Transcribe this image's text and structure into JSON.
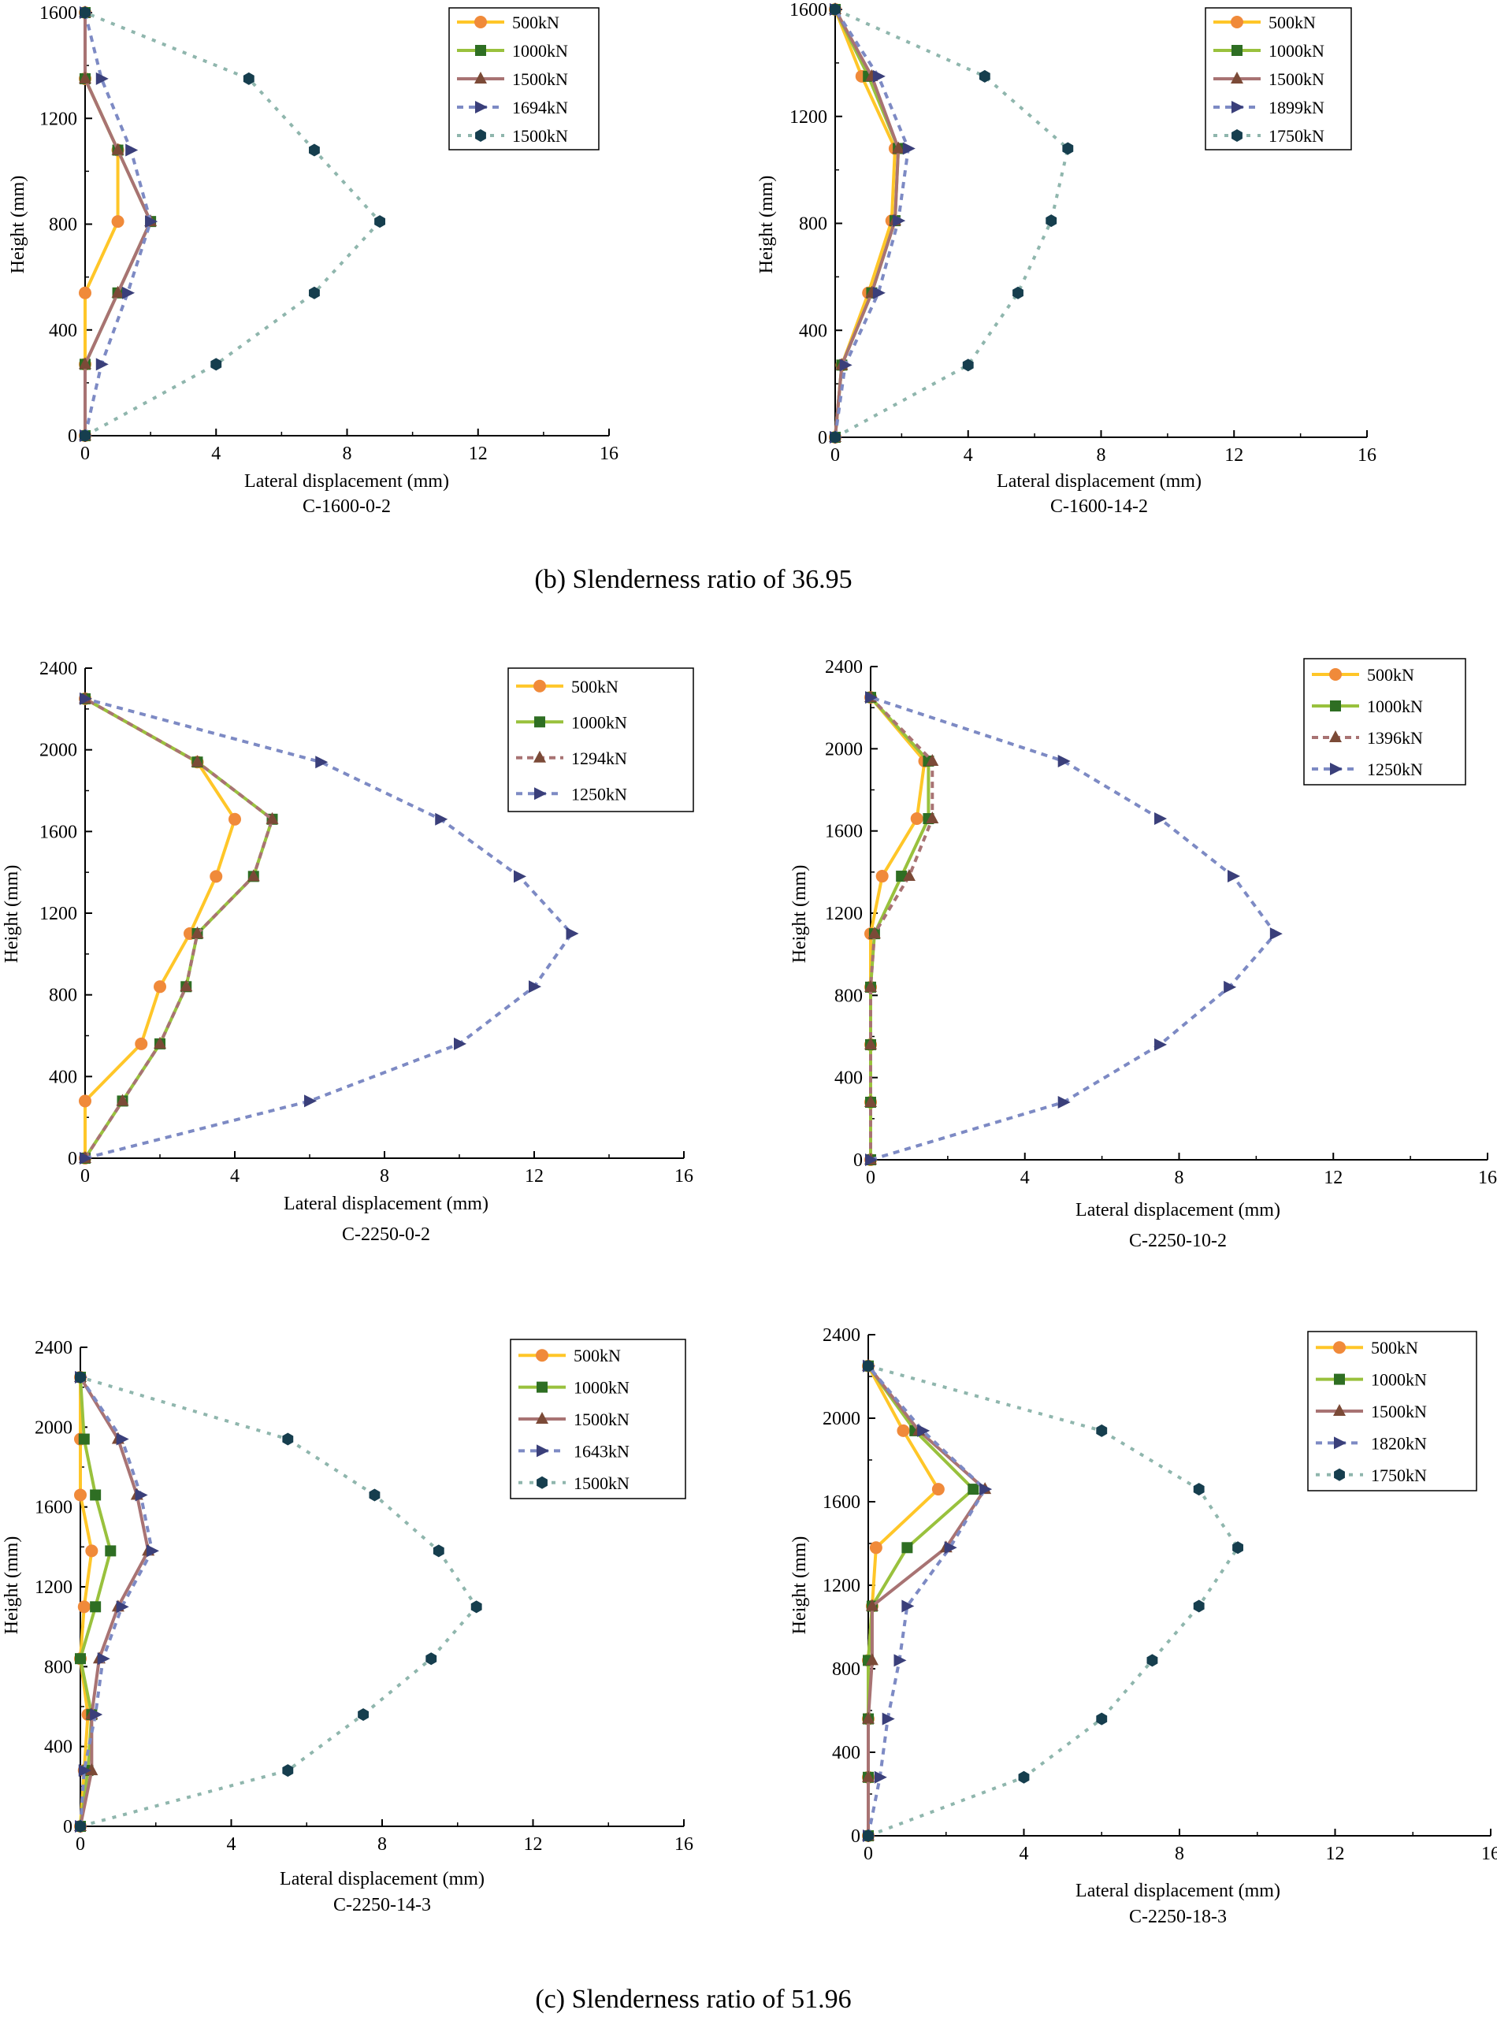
{
  "colors": {
    "c500": "#FFC628",
    "c1000": "#99C13D",
    "c1500": "#A87373",
    "cpeak": "#7D8AC4",
    "cpost": "#8FB6AD",
    "m500": "#F08A3A",
    "m1000": "#2E6E23",
    "m1500": "#7B4A37",
    "mpeak": "#3A3F7A",
    "mpost": "#163E4E"
  },
  "captions": {
    "b": "(b) Slenderness ratio of 36.95",
    "c": "(c) Slenderness ratio of 51.96"
  },
  "chart_data": [
    {
      "type": "line",
      "subtitle": "C-1600-0-2",
      "xlabel": "Lateral displacement (mm)",
      "ylabel": "Height (mm)",
      "xlim": [
        0,
        16
      ],
      "ylim": [
        0,
        1600
      ],
      "xticks": [
        0,
        4,
        8,
        12,
        16
      ],
      "yticks": [
        0,
        400,
        800,
        1200,
        1600
      ],
      "series": [
        {
          "name": "500kN",
          "style": "c500",
          "x": [
            0,
            0,
            0,
            1,
            1,
            0,
            0
          ],
          "y": [
            0,
            270,
            540,
            810,
            1080,
            1350,
            1600
          ]
        },
        {
          "name": "1000kN",
          "style": "c1000",
          "x": [
            0,
            0,
            1,
            2,
            1,
            0,
            0
          ],
          "y": [
            0,
            270,
            540,
            810,
            1080,
            1350,
            1600
          ]
        },
        {
          "name": "1500kN",
          "style": "c1500",
          "x": [
            0,
            0,
            1,
            2,
            1,
            0,
            0
          ],
          "y": [
            0,
            270,
            540,
            810,
            1080,
            1350,
            1600
          ]
        },
        {
          "name": "1694kN",
          "style": "cpeak",
          "x": [
            0,
            0.5,
            1.3,
            2,
            1.4,
            0.5,
            0
          ],
          "y": [
            0,
            270,
            540,
            810,
            1080,
            1350,
            1600
          ]
        },
        {
          "name": "1500kN",
          "style": "cpost",
          "x": [
            0,
            4,
            7,
            9,
            7,
            5,
            0
          ],
          "y": [
            0,
            270,
            540,
            810,
            1080,
            1350,
            1600
          ]
        }
      ]
    },
    {
      "type": "line",
      "subtitle": "C-1600-14-2",
      "xlabel": "Lateral displacement (mm)",
      "ylabel": "Height (mm)",
      "xlim": [
        0,
        16
      ],
      "ylim": [
        0,
        1600
      ],
      "xticks": [
        0,
        4,
        8,
        12,
        16
      ],
      "yticks": [
        0,
        400,
        800,
        1200,
        1600
      ],
      "series": [
        {
          "name": "500kN",
          "style": "c500",
          "x": [
            0,
            0.2,
            1,
            1.7,
            1.8,
            0.8,
            0
          ],
          "y": [
            0,
            270,
            540,
            810,
            1080,
            1350,
            1600
          ]
        },
        {
          "name": "1000kN",
          "style": "c1000",
          "x": [
            0,
            0.2,
            1.1,
            1.8,
            1.9,
            1,
            0
          ],
          "y": [
            0,
            270,
            540,
            810,
            1080,
            1350,
            1600
          ]
        },
        {
          "name": "1500kN",
          "style": "c1500",
          "x": [
            0,
            0.2,
            1.1,
            1.8,
            1.9,
            1.1,
            0
          ],
          "y": [
            0,
            270,
            540,
            810,
            1080,
            1350,
            1600
          ]
        },
        {
          "name": "1899kN",
          "style": "cpeak",
          "x": [
            0,
            0.3,
            1.3,
            1.9,
            2.2,
            1.3,
            0
          ],
          "y": [
            0,
            270,
            540,
            810,
            1080,
            1350,
            1600
          ]
        },
        {
          "name": "1750kN",
          "style": "cpost",
          "x": [
            0,
            4,
            5.5,
            6.5,
            7,
            4.5,
            0
          ],
          "y": [
            0,
            270,
            540,
            810,
            1080,
            1350,
            1600
          ]
        }
      ]
    },
    {
      "type": "line",
      "subtitle": "C-2250-0-2",
      "xlabel": "Lateral displacement (mm)",
      "ylabel": "Height (mm)",
      "xlim": [
        0,
        16
      ],
      "ylim": [
        0,
        2400
      ],
      "xticks": [
        0,
        4,
        8,
        12,
        16
      ],
      "yticks": [
        0,
        400,
        800,
        1200,
        1600,
        2000,
        2400
      ],
      "series": [
        {
          "name": "500kN",
          "style": "c500",
          "x": [
            0,
            0,
            1.5,
            2,
            2.8,
            3.5,
            4,
            3,
            0
          ],
          "y": [
            0,
            280,
            560,
            840,
            1100,
            1380,
            1660,
            1940,
            2250
          ]
        },
        {
          "name": "1000kN",
          "style": "c1000",
          "x": [
            0,
            1,
            2,
            2.7,
            3,
            4.5,
            5,
            3,
            0
          ],
          "y": [
            0,
            280,
            560,
            840,
            1100,
            1380,
            1660,
            1940,
            2250
          ]
        },
        {
          "name": "1294kN",
          "style": "c1500dash",
          "x": [
            0,
            1,
            2,
            2.7,
            3,
            4.5,
            5,
            3,
            0
          ],
          "y": [
            0,
            280,
            560,
            840,
            1100,
            1380,
            1660,
            1940,
            2250
          ]
        },
        {
          "name": "1250kN",
          "style": "cpeak",
          "x": [
            0,
            6,
            10,
            12,
            13,
            11.6,
            9.5,
            6.3,
            0
          ],
          "y": [
            0,
            280,
            560,
            840,
            1100,
            1380,
            1660,
            1940,
            2250
          ]
        }
      ]
    },
    {
      "type": "line",
      "subtitle": "C-2250-10-2",
      "xlabel": "Lateral displacement (mm)",
      "ylabel": "Height (mm)",
      "xlim": [
        0,
        16
      ],
      "ylim": [
        0,
        2400
      ],
      "xticks": [
        0,
        4,
        8,
        12,
        16
      ],
      "yticks": [
        0,
        400,
        800,
        1200,
        1600,
        2000,
        2400
      ],
      "series": [
        {
          "name": "500kN",
          "style": "c500",
          "x": [
            0,
            0,
            0,
            0,
            0,
            0.3,
            1.2,
            1.4,
            0
          ],
          "y": [
            0,
            280,
            560,
            840,
            1100,
            1380,
            1660,
            1940,
            2250
          ]
        },
        {
          "name": "1000kN",
          "style": "c1000",
          "x": [
            0,
            0,
            0,
            0,
            0.1,
            0.8,
            1.5,
            1.5,
            0
          ],
          "y": [
            0,
            280,
            560,
            840,
            1100,
            1380,
            1660,
            1940,
            2250
          ]
        },
        {
          "name": "1396kN",
          "style": "c1500dash",
          "x": [
            0,
            0,
            0,
            0,
            0.1,
            1,
            1.6,
            1.6,
            0
          ],
          "y": [
            0,
            280,
            560,
            840,
            1100,
            1380,
            1660,
            1940,
            2250
          ]
        },
        {
          "name": "1250kN",
          "style": "cpeak",
          "x": [
            0,
            5,
            7.5,
            9.3,
            10.5,
            9.4,
            7.5,
            5,
            0
          ],
          "y": [
            0,
            280,
            560,
            840,
            1100,
            1380,
            1660,
            1940,
            2250
          ]
        }
      ]
    },
    {
      "type": "line",
      "subtitle": "C-2250-14-3",
      "xlabel": "Lateral displacement (mm)",
      "ylabel": "Height (mm)",
      "xlim": [
        0,
        16
      ],
      "ylim": [
        0,
        2400
      ],
      "xticks": [
        0,
        4,
        8,
        12,
        16
      ],
      "yticks": [
        0,
        400,
        800,
        1200,
        1600,
        2000,
        2400
      ],
      "series": [
        {
          "name": "500kN",
          "style": "c500",
          "x": [
            0,
            0.1,
            0.2,
            0,
            0.1,
            0.3,
            0,
            0,
            0
          ],
          "y": [
            0,
            280,
            560,
            840,
            1100,
            1380,
            1660,
            1940,
            2250
          ]
        },
        {
          "name": "1000kN",
          "style": "c1000",
          "x": [
            0,
            0.2,
            0.3,
            0,
            0.4,
            0.8,
            0.4,
            0.1,
            0
          ],
          "y": [
            0,
            280,
            560,
            840,
            1100,
            1380,
            1660,
            1940,
            2250
          ]
        },
        {
          "name": "1500kN",
          "style": "c1500",
          "x": [
            0,
            0.3,
            0.3,
            0.5,
            1,
            1.8,
            1.5,
            1,
            0
          ],
          "y": [
            0,
            280,
            560,
            840,
            1100,
            1380,
            1660,
            1940,
            2250
          ]
        },
        {
          "name": "1643kN",
          "style": "cpeak",
          "x": [
            0,
            0.1,
            0.4,
            0.6,
            1.1,
            1.9,
            1.6,
            1.1,
            0
          ],
          "y": [
            0,
            280,
            560,
            840,
            1100,
            1380,
            1660,
            1940,
            2250
          ]
        },
        {
          "name": "1500kN",
          "style": "cpost",
          "x": [
            0,
            5.5,
            7.5,
            9.3,
            10.5,
            9.5,
            7.8,
            5.5,
            0
          ],
          "y": [
            0,
            280,
            560,
            840,
            1100,
            1380,
            1660,
            1940,
            2250
          ]
        }
      ]
    },
    {
      "type": "line",
      "subtitle": "C-2250-18-3",
      "xlabel": "Lateral displacement (mm)",
      "ylabel": "Height (mm)",
      "xlim": [
        0,
        16
      ],
      "ylim": [
        0,
        2400
      ],
      "xticks": [
        0,
        4,
        8,
        12,
        16
      ],
      "yticks": [
        0,
        400,
        800,
        1200,
        1600,
        2000,
        2400
      ],
      "series": [
        {
          "name": "500kN",
          "style": "c500",
          "x": [
            0,
            0,
            0,
            0,
            0.1,
            0.2,
            1.8,
            0.9,
            0
          ],
          "y": [
            0,
            280,
            560,
            840,
            1100,
            1380,
            1660,
            1940,
            2250
          ]
        },
        {
          "name": "1000kN",
          "style": "c1000",
          "x": [
            0,
            0,
            0,
            0,
            0.1,
            1,
            2.7,
            1.2,
            0
          ],
          "y": [
            0,
            280,
            560,
            840,
            1100,
            1380,
            1660,
            1940,
            2250
          ]
        },
        {
          "name": "1500kN",
          "style": "c1500",
          "x": [
            0,
            0,
            0,
            0.1,
            0.1,
            2,
            3,
            1.3,
            0
          ],
          "y": [
            0,
            280,
            560,
            840,
            1100,
            1380,
            1660,
            1940,
            2250
          ]
        },
        {
          "name": "1820kN",
          "style": "cpeak",
          "x": [
            0,
            0.3,
            0.5,
            0.8,
            1,
            2.1,
            3,
            1.4,
            0
          ],
          "y": [
            0,
            280,
            560,
            840,
            1100,
            1380,
            1660,
            1940,
            2250
          ]
        },
        {
          "name": "1750kN",
          "style": "cpost",
          "x": [
            0,
            4,
            6,
            7.3,
            8.5,
            9.5,
            8.5,
            6,
            0
          ],
          "y": [
            0,
            280,
            560,
            840,
            1100,
            1380,
            1660,
            1940,
            2250
          ]
        }
      ]
    }
  ]
}
